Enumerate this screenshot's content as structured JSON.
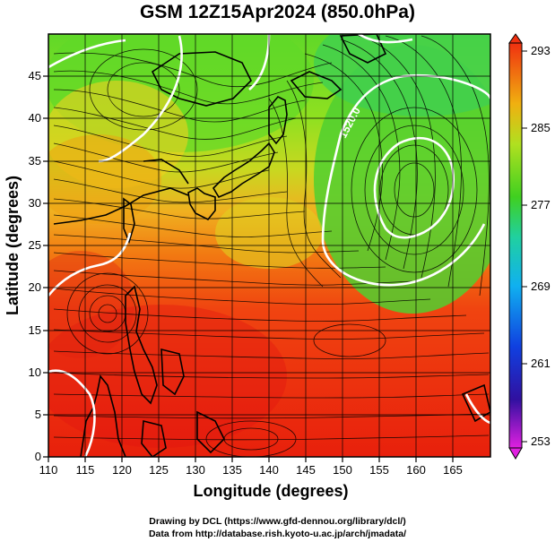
{
  "title": "GSM 12Z15Apr2024 (850.0hPa)",
  "x_axis": {
    "label": "Longitude (degrees)",
    "ticks": [
      "110",
      "115",
      "120",
      "125",
      "130",
      "135",
      "140",
      "145",
      "150",
      "155",
      "160",
      "165"
    ],
    "range": [
      110,
      170
    ]
  },
  "y_axis": {
    "label": "Latitude  (degrees)",
    "ticks": [
      "0",
      "5",
      "10",
      "15",
      "20",
      "25",
      "30",
      "35",
      "40",
      "45"
    ],
    "range": [
      0,
      50
    ]
  },
  "colorbar": {
    "labels": [
      "293",
      "285",
      "277",
      "269",
      "261",
      "253"
    ],
    "range": [
      253,
      293
    ],
    "colors": [
      "#e020e0",
      "#1010a0",
      "#1a50e0",
      "#10b0e0",
      "#30d070",
      "#50d020",
      "#c0e020",
      "#f0a010",
      "#f04010"
    ]
  },
  "contour_label": "1520.0",
  "credits": [
    "Drawing by DCL (https://www.gfd-dennou.org/library/dcl/)",
    "Data from http://database.rish.kyoto-u.ac.jp/arch/jmadata/"
  ]
}
